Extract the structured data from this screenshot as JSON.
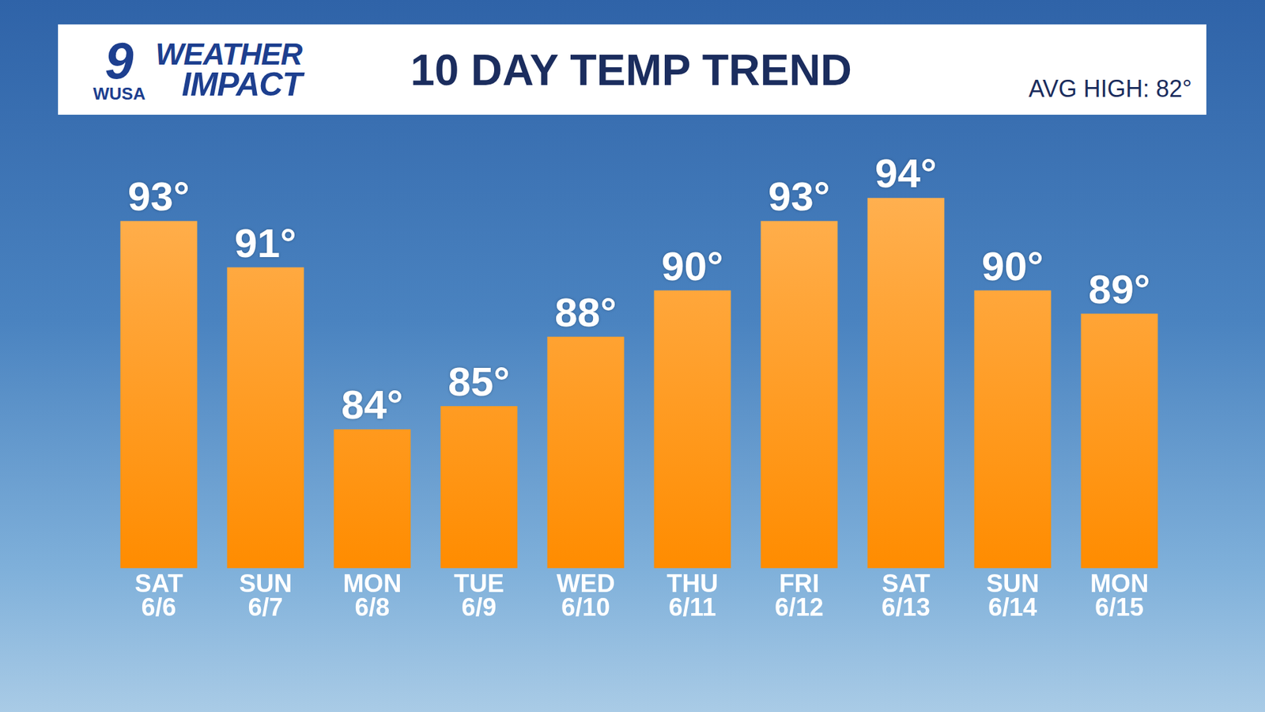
{
  "header": {
    "logo_number": "9",
    "logo_station": "WUSA",
    "brand": [
      "WEATHER",
      "IMPACT"
    ]
  },
  "chart_data": {
    "type": "bar",
    "title": "10 DAY TEMP TREND",
    "subtitle": "AVG HIGH: 82°",
    "categories": [
      [
        "SAT",
        "6/6"
      ],
      [
        "SUN",
        "6/7"
      ],
      [
        "MON",
        "6/8"
      ],
      [
        "TUE",
        "6/9"
      ],
      [
        "WED",
        "6/10"
      ],
      [
        "THU",
        "6/11"
      ],
      [
        "FRI",
        "6/12"
      ],
      [
        "SAT",
        "6/13"
      ],
      [
        "SUN",
        "6/14"
      ],
      [
        "MON",
        "6/15"
      ]
    ],
    "values": [
      93,
      91,
      84,
      85,
      88,
      90,
      93,
      94,
      90,
      89
    ],
    "value_labels": [
      "93°",
      "91°",
      "84°",
      "85°",
      "88°",
      "90°",
      "93°",
      "94°",
      "90°",
      "89°"
    ],
    "color": "#ff8c00",
    "ylim": [
      78,
      96
    ],
    "grid": false,
    "data_labels": true,
    "tick_labels": "x"
  }
}
